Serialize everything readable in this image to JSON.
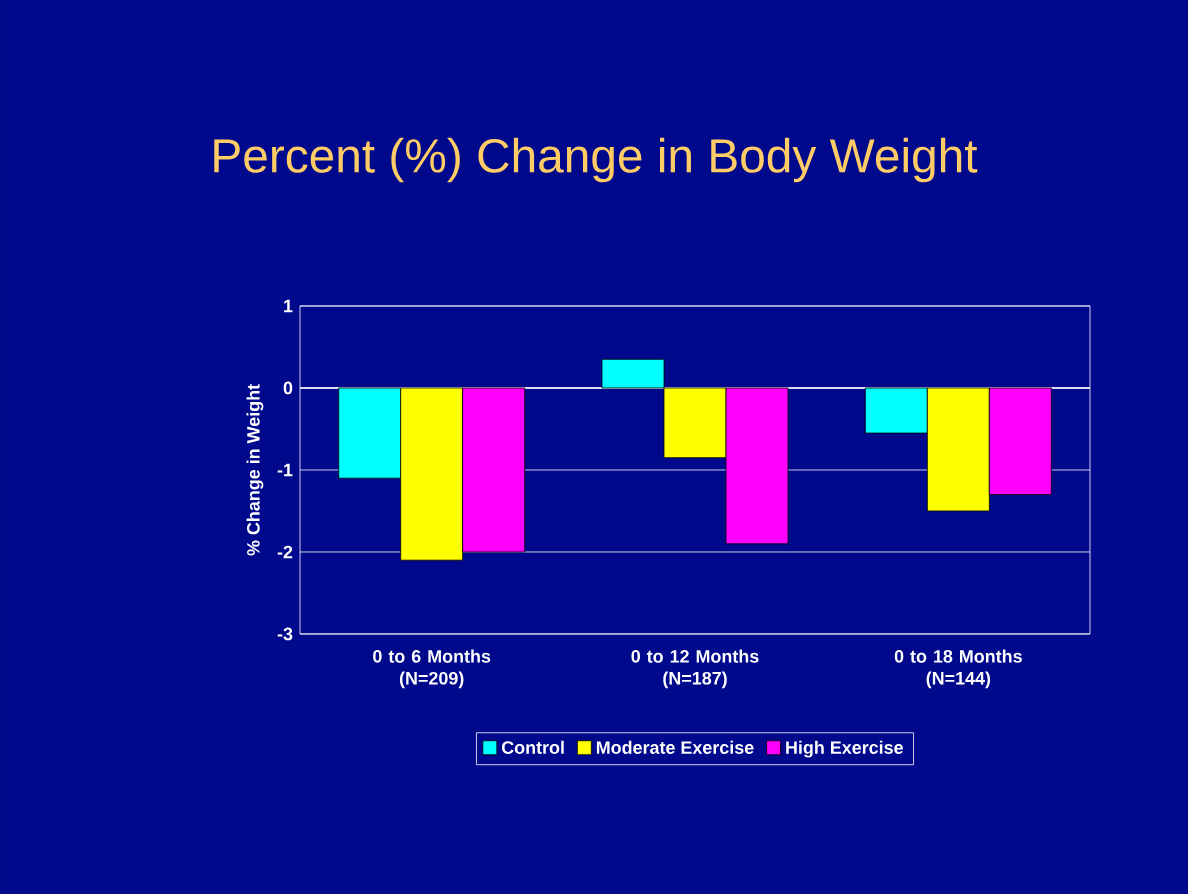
{
  "chart_data": {
    "type": "bar",
    "title": "Percent (%) Change in Body Weight",
    "ylabel": "% Change in Weight",
    "categories": [
      "0 to 6 Months (N=209)",
      "0 to 12 Months (N=187)",
      "0 to 18 Months (N=144)"
    ],
    "series": [
      {
        "name": "Control",
        "color": "#00ffff",
        "values": [
          -1.1,
          0.35,
          -0.55
        ]
      },
      {
        "name": "Moderate Exercise",
        "color": "#ffff00",
        "values": [
          -2.1,
          -0.85,
          -1.5
        ]
      },
      {
        "name": "High Exercise",
        "color": "#ff00ff",
        "values": [
          -2.0,
          -1.9,
          -1.3
        ]
      }
    ],
    "ylim": [
      -3,
      1
    ],
    "yticks": [
      -3,
      -2,
      -1,
      0,
      1
    ],
    "grid": "y",
    "legend": "bottom"
  }
}
